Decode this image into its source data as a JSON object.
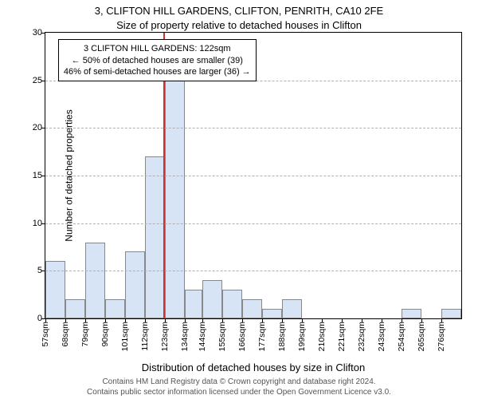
{
  "chart": {
    "type": "histogram",
    "title_line1": "3, CLIFTON HILL GARDENS, CLIFTON, PENRITH, CA10 2FE",
    "title_line2": "Size of property relative to detached houses in Clifton",
    "title_fontsize": 13,
    "ylabel": "Number of detached properties",
    "xlabel": "Distribution of detached houses by size in Clifton",
    "label_fontsize": 12,
    "background_color": "#ffffff",
    "grid_color": "#b0b0b0",
    "bar_fill": "#d6e4f5",
    "bar_border": "#888888",
    "highlight_color": "#cc3333",
    "ylim": [
      0,
      30
    ],
    "yticks": [
      0,
      5,
      10,
      15,
      20,
      25,
      30
    ],
    "xlim": [
      57,
      287
    ],
    "xtick_positions": [
      57,
      68,
      79,
      90,
      101,
      112,
      123,
      134,
      144,
      155,
      166,
      177,
      188,
      199,
      210,
      221,
      232,
      243,
      254,
      265,
      276
    ],
    "xtick_labels": [
      "57sqm",
      "68sqm",
      "79sqm",
      "90sqm",
      "101sqm",
      "112sqm",
      "123sqm",
      "134sqm",
      "144sqm",
      "155sqm",
      "166sqm",
      "177sqm",
      "188sqm",
      "199sqm",
      "210sqm",
      "221sqm",
      "232sqm",
      "243sqm",
      "254sqm",
      "265sqm",
      "276sqm"
    ],
    "bars": [
      {
        "x0": 57,
        "x1": 68,
        "y": 6
      },
      {
        "x0": 68,
        "x1": 79,
        "y": 2
      },
      {
        "x0": 79,
        "x1": 90,
        "y": 8
      },
      {
        "x0": 90,
        "x1": 101,
        "y": 2
      },
      {
        "x0": 101,
        "x1": 112,
        "y": 7
      },
      {
        "x0": 112,
        "x1": 123,
        "y": 17
      },
      {
        "x0": 123,
        "x1": 134,
        "y": 25
      },
      {
        "x0": 134,
        "x1": 144,
        "y": 3
      },
      {
        "x0": 144,
        "x1": 155,
        "y": 4
      },
      {
        "x0": 155,
        "x1": 166,
        "y": 3
      },
      {
        "x0": 166,
        "x1": 177,
        "y": 2
      },
      {
        "x0": 177,
        "x1": 188,
        "y": 1
      },
      {
        "x0": 188,
        "x1": 199,
        "y": 2
      },
      {
        "x0": 199,
        "x1": 210,
        "y": 0
      },
      {
        "x0": 210,
        "x1": 221,
        "y": 0
      },
      {
        "x0": 221,
        "x1": 232,
        "y": 0
      },
      {
        "x0": 232,
        "x1": 243,
        "y": 0
      },
      {
        "x0": 243,
        "x1": 254,
        "y": 0
      },
      {
        "x0": 254,
        "x1": 265,
        "y": 1
      },
      {
        "x0": 265,
        "x1": 276,
        "y": 0
      },
      {
        "x0": 276,
        "x1": 287,
        "y": 1
      }
    ],
    "highlight_x": 122,
    "annotation": {
      "line1": "3 CLIFTON HILL GARDENS: 122sqm",
      "line2": "← 50% of detached houses are smaller (39)",
      "line3": "46% of semi-detached houses are larger (36) →",
      "box_left_x": 64,
      "box_top_y": 29.3,
      "box_width_x": 130,
      "fontsize": 11
    }
  },
  "footer": {
    "line1": "Contains HM Land Registry data © Crown copyright and database right 2024.",
    "line2": "Contains public sector information licensed under the Open Government Licence v3.0.",
    "fontsize": 10,
    "color": "#555555"
  }
}
